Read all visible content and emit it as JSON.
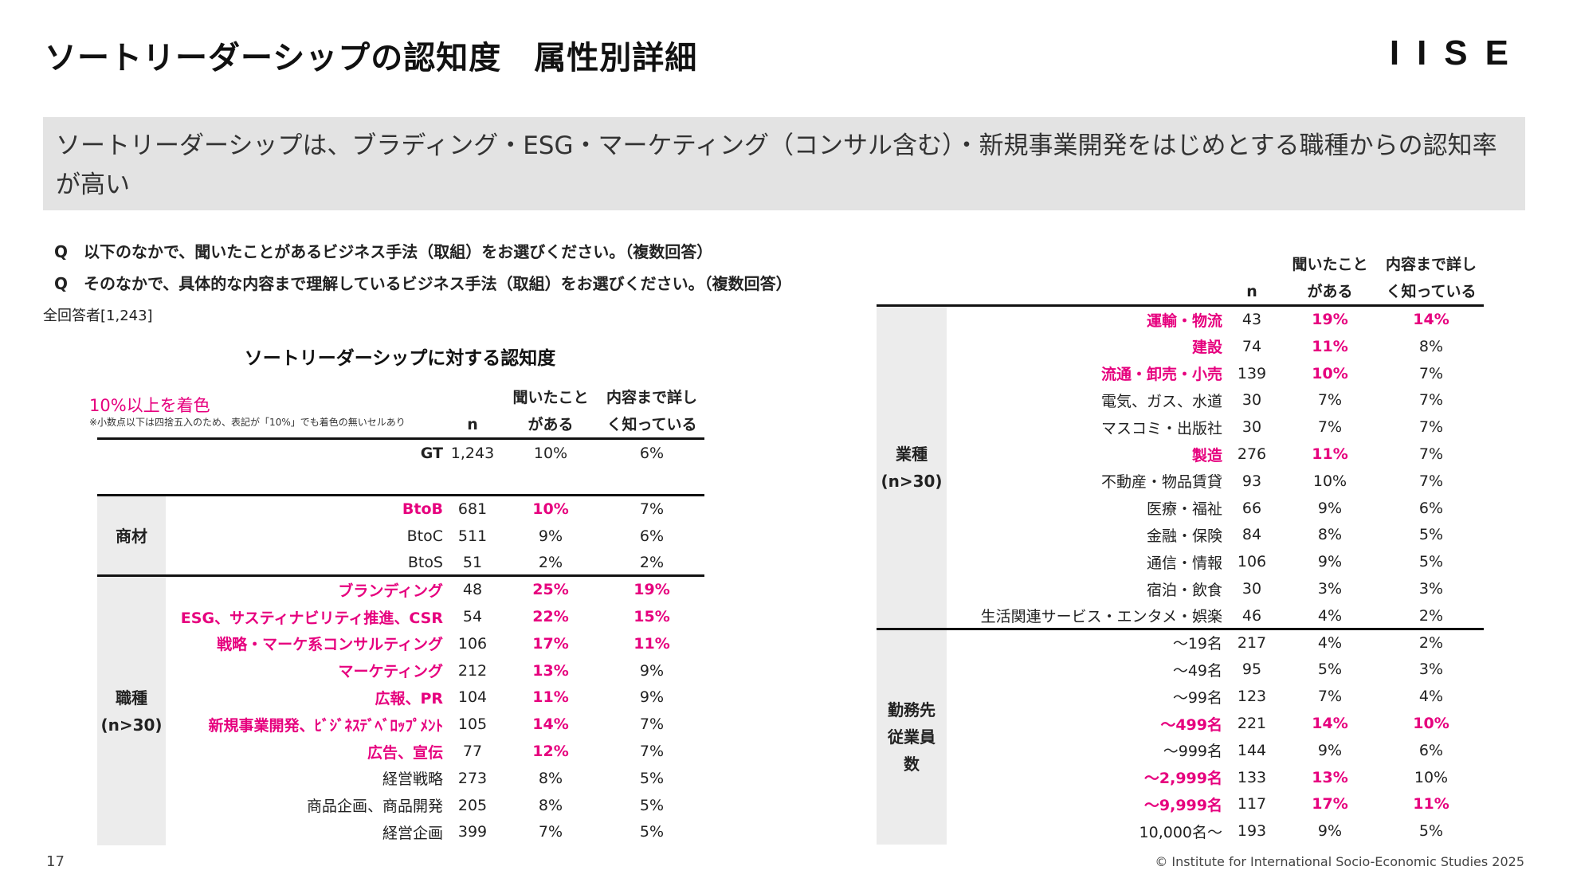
{
  "header": {
    "title": "ソートリーダーシップの認知度　属性別詳細",
    "logo": "IISE"
  },
  "banner": {
    "text": "ソートリーダーシップは、ブラディング・ESG・マーケティング（コンサル含む）・新規事業開発をはじめとする職種からの認知率が高い"
  },
  "questions": [
    "Q　以下のなかで、聞いたことがあるビジネス手法（取組）をお選びください。（複数回答）",
    "Q　そのなかで、具体的な内容まで理解しているビジネス手法（取組）をお選びください。（複数回答）"
  ],
  "base": "全回答者[1,243]",
  "table_title": "ソートリーダーシップに対する認知度",
  "legend": {
    "label": "10%以上を着色",
    "note": "※小数点以下は四捨五入のため、表記が「10%」でも着色の無いセルあり"
  },
  "columns": {
    "n": "n",
    "heard_1": "聞いたこと",
    "heard_2": "がある",
    "detail_1": "内容まで詳し",
    "detail_2": "く知っている"
  },
  "left_table": {
    "gt": {
      "label": "GT",
      "n": "1,243",
      "heard": "10%",
      "detail": "6%"
    },
    "groups": [
      {
        "name": "商材",
        "rows": [
          {
            "label": "BtoB",
            "n": "681",
            "heard": "10%",
            "detail": "7%",
            "hl_label": true,
            "hl_heard": true,
            "hl_detail": false
          },
          {
            "label": "BtoC",
            "n": "511",
            "heard": "9%",
            "detail": "6%",
            "hl_label": false,
            "hl_heard": false,
            "hl_detail": false
          },
          {
            "label": "BtoS",
            "n": "51",
            "heard": "2%",
            "detail": "2%",
            "hl_label": false,
            "hl_heard": false,
            "hl_detail": false
          }
        ]
      },
      {
        "name": "職種\n(n>30)",
        "rows": [
          {
            "label": "ブランディング",
            "n": "48",
            "heard": "25%",
            "detail": "19%",
            "hl_label": true,
            "hl_heard": true,
            "hl_detail": true
          },
          {
            "label": "ESG、サスティナビリティ推進、CSR",
            "n": "54",
            "heard": "22%",
            "detail": "15%",
            "hl_label": true,
            "hl_heard": true,
            "hl_detail": true
          },
          {
            "label": "戦略・マーケ系コンサルティング",
            "n": "106",
            "heard": "17%",
            "detail": "11%",
            "hl_label": true,
            "hl_heard": true,
            "hl_detail": true
          },
          {
            "label": "マーケティング",
            "n": "212",
            "heard": "13%",
            "detail": "9%",
            "hl_label": true,
            "hl_heard": true,
            "hl_detail": false
          },
          {
            "label": "広報、PR",
            "n": "104",
            "heard": "11%",
            "detail": "9%",
            "hl_label": true,
            "hl_heard": true,
            "hl_detail": false
          },
          {
            "label": "新規事業開発、ﾋﾞｼﾞﾈｽﾃﾞﾍﾞﾛｯﾌﾟﾒﾝﾄ",
            "n": "105",
            "heard": "14%",
            "detail": "7%",
            "hl_label": true,
            "hl_heard": true,
            "hl_detail": false
          },
          {
            "label": "広告、宣伝",
            "n": "77",
            "heard": "12%",
            "detail": "7%",
            "hl_label": true,
            "hl_heard": true,
            "hl_detail": false
          },
          {
            "label": "経営戦略",
            "n": "273",
            "heard": "8%",
            "detail": "5%",
            "hl_label": false,
            "hl_heard": false,
            "hl_detail": false
          },
          {
            "label": "商品企画、商品開発",
            "n": "205",
            "heard": "8%",
            "detail": "5%",
            "hl_label": false,
            "hl_heard": false,
            "hl_detail": false
          },
          {
            "label": "経営企画",
            "n": "399",
            "heard": "7%",
            "detail": "5%",
            "hl_label": false,
            "hl_heard": false,
            "hl_detail": false
          }
        ]
      }
    ]
  },
  "right_table": {
    "groups": [
      {
        "name": "業種\n(n>30)",
        "rows": [
          {
            "label": "運輸・物流",
            "n": "43",
            "heard": "19%",
            "detail": "14%",
            "hl_label": true,
            "hl_heard": true,
            "hl_detail": true
          },
          {
            "label": "建設",
            "n": "74",
            "heard": "11%",
            "detail": "8%",
            "hl_label": true,
            "hl_heard": true,
            "hl_detail": false
          },
          {
            "label": "流通・卸売・小売",
            "n": "139",
            "heard": "10%",
            "detail": "7%",
            "hl_label": true,
            "hl_heard": true,
            "hl_detail": false
          },
          {
            "label": "電気、ガス、水道",
            "n": "30",
            "heard": "7%",
            "detail": "7%",
            "hl_label": false,
            "hl_heard": false,
            "hl_detail": false
          },
          {
            "label": "マスコミ・出版社",
            "n": "30",
            "heard": "7%",
            "detail": "7%",
            "hl_label": false,
            "hl_heard": false,
            "hl_detail": false
          },
          {
            "label": "製造",
            "n": "276",
            "heard": "11%",
            "detail": "7%",
            "hl_label": true,
            "hl_heard": true,
            "hl_detail": false
          },
          {
            "label": "不動産・物品賃貸",
            "n": "93",
            "heard": "10%",
            "detail": "7%",
            "hl_label": false,
            "hl_heard": false,
            "hl_detail": false
          },
          {
            "label": "医療・福祉",
            "n": "66",
            "heard": "9%",
            "detail": "6%",
            "hl_label": false,
            "hl_heard": false,
            "hl_detail": false
          },
          {
            "label": "金融・保険",
            "n": "84",
            "heard": "8%",
            "detail": "5%",
            "hl_label": false,
            "hl_heard": false,
            "hl_detail": false
          },
          {
            "label": "通信・情報",
            "n": "106",
            "heard": "9%",
            "detail": "5%",
            "hl_label": false,
            "hl_heard": false,
            "hl_detail": false
          },
          {
            "label": "宿泊・飲食",
            "n": "30",
            "heard": "3%",
            "detail": "3%",
            "hl_label": false,
            "hl_heard": false,
            "hl_detail": false
          },
          {
            "label": "生活関連サービス・エンタメ・娯楽",
            "n": "46",
            "heard": "4%",
            "detail": "2%",
            "hl_label": false,
            "hl_heard": false,
            "hl_detail": false
          }
        ]
      },
      {
        "name": "勤務先\n従業員\n数",
        "rows": [
          {
            "label": "～19名",
            "n": "217",
            "heard": "4%",
            "detail": "2%",
            "hl_label": false,
            "hl_heard": false,
            "hl_detail": false
          },
          {
            "label": "～49名",
            "n": "95",
            "heard": "5%",
            "detail": "3%",
            "hl_label": false,
            "hl_heard": false,
            "hl_detail": false
          },
          {
            "label": "～99名",
            "n": "123",
            "heard": "7%",
            "detail": "4%",
            "hl_label": false,
            "hl_heard": false,
            "hl_detail": false
          },
          {
            "label": "～499名",
            "n": "221",
            "heard": "14%",
            "detail": "10%",
            "hl_label": true,
            "hl_heard": true,
            "hl_detail": true
          },
          {
            "label": "～999名",
            "n": "144",
            "heard": "9%",
            "detail": "6%",
            "hl_label": false,
            "hl_heard": false,
            "hl_detail": false
          },
          {
            "label": "～2,999名",
            "n": "133",
            "heard": "13%",
            "detail": "10%",
            "hl_label": true,
            "hl_heard": true,
            "hl_detail": false
          },
          {
            "label": "～9,999名",
            "n": "117",
            "heard": "17%",
            "detail": "11%",
            "hl_label": true,
            "hl_heard": true,
            "hl_detail": true
          },
          {
            "label": "10,000名～",
            "n": "193",
            "heard": "9%",
            "detail": "5%",
            "hl_label": false,
            "hl_heard": false,
            "hl_detail": false
          }
        ]
      }
    ]
  },
  "footer": {
    "page": "17",
    "copyright": "© Institute for International Socio-Economic Studies 2025"
  },
  "colors": {
    "highlight": "#e6007e",
    "group_bg": "#ececec",
    "banner_bg": "#e3e3e3"
  }
}
